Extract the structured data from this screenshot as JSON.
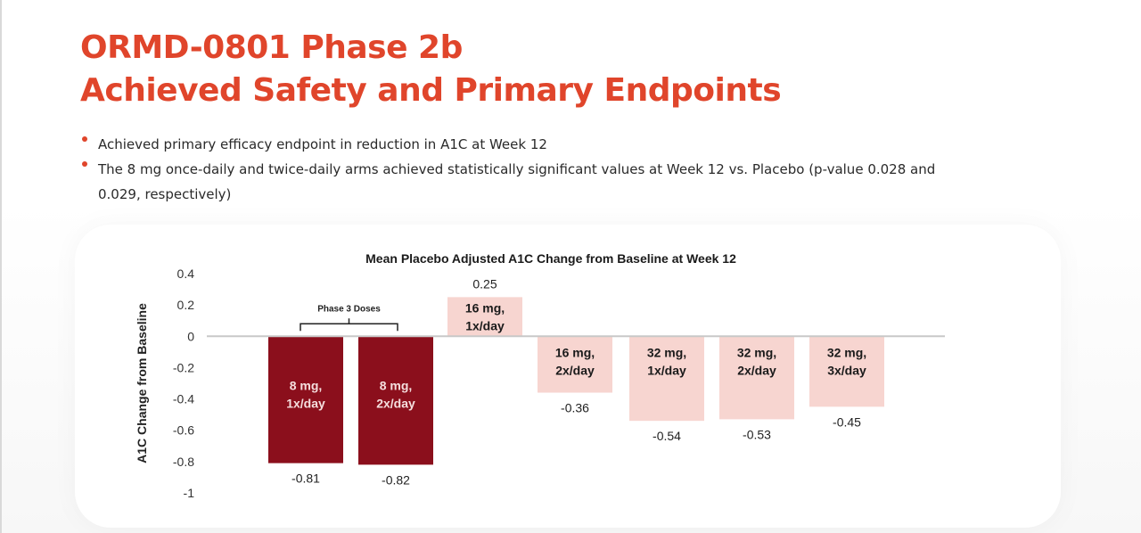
{
  "slide": {
    "title_line1": "ORMD-0801 Phase 2b",
    "title_line2": "Achieved Safety and Primary Endpoints",
    "bullets": [
      "Achieved primary efficacy endpoint in reduction in A1C at Week 12",
      "The 8 mg once-daily and twice-daily arms achieved statistically significant values at Week 12 vs. Placebo (p-value 0.028 and 0.029, respectively)"
    ],
    "accent_color": "#e0452b"
  },
  "chart_data": {
    "type": "bar",
    "title": "Mean Placebo Adjusted A1C Change from Baseline at Week 12",
    "xlabel": "",
    "ylabel": "A1C Change from Baseline",
    "ylim": [
      -1,
      0.4
    ],
    "yticks": [
      0.4,
      0.2,
      0,
      -0.2,
      -0.4,
      -0.6,
      -0.8,
      -1
    ],
    "ytick_labels": [
      "0.4",
      "0.2",
      "0",
      "-0.2",
      "-0.4",
      "-0.6",
      "-0.8",
      "-1"
    ],
    "grid": false,
    "legend": "none",
    "categories": [
      [
        "8 mg,",
        "1x/day"
      ],
      [
        "8 mg,",
        "2x/day"
      ],
      [
        "16 mg,",
        "1x/day"
      ],
      [
        "16 mg,",
        "2x/day"
      ],
      [
        "32 mg,",
        "1x/day"
      ],
      [
        "32 mg,",
        "2x/day"
      ],
      [
        "32 mg,",
        "3x/day"
      ]
    ],
    "values": [
      -0.81,
      -0.82,
      0.25,
      -0.36,
      -0.54,
      -0.53,
      -0.45
    ],
    "value_labels": [
      "-0.81",
      "-0.82",
      "0.25",
      "-0.36",
      "-0.54",
      "-0.53",
      "-0.45"
    ],
    "highlight": [
      true,
      true,
      false,
      false,
      false,
      false,
      false
    ],
    "colors": {
      "highlight": "#8b0f1c",
      "normal": "#f7d5d0",
      "highlight_text": "#f5dede",
      "normal_text": "#1a1a1a",
      "zero_line": "#c8c8c8"
    },
    "annotation": {
      "text": "Phase 3 Doses",
      "bracket_over": [
        0,
        1
      ]
    }
  }
}
